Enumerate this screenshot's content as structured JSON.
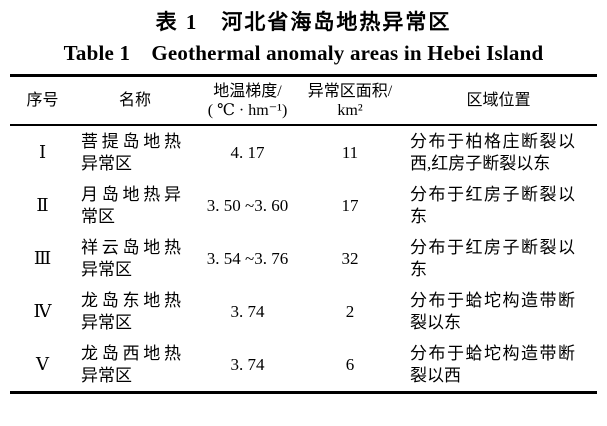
{
  "page": {
    "title_cn": "表 1　河北省海岛地热异常区",
    "title_en": "Table 1　Geothermal anomaly areas in Hebei Island"
  },
  "table": {
    "headers": {
      "no": "序号",
      "name": "名称",
      "gradient": "地温梯度/\n( ℃ · hm⁻¹)",
      "area": "异常区面积/\nkm²",
      "location": "区域位置"
    },
    "rows": [
      {
        "no": "Ⅰ",
        "name": "菩提岛地热异常区",
        "gradient": "4. 17",
        "area": "11",
        "location": "分布于柏格庄断裂以西,红房子断裂以东"
      },
      {
        "no": "Ⅱ",
        "name": "月岛地热异常区",
        "gradient": "3. 50 ~3. 60",
        "area": "17",
        "location": "分布于红房子断裂以东"
      },
      {
        "no": "Ⅲ",
        "name": "祥云岛地热异常区",
        "gradient": "3. 54 ~3. 76",
        "area": "32",
        "location": "分布于红房子断裂以东"
      },
      {
        "no": "Ⅳ",
        "name": "龙岛东地热异常区",
        "gradient": "3. 74",
        "area": "2",
        "location": "分布于蛤坨构造带断裂以东"
      },
      {
        "no": "Ⅴ",
        "name": "龙岛西地热异常区",
        "gradient": "3. 74",
        "area": "6",
        "location": "分布于蛤坨构造带断裂以西"
      }
    ]
  }
}
